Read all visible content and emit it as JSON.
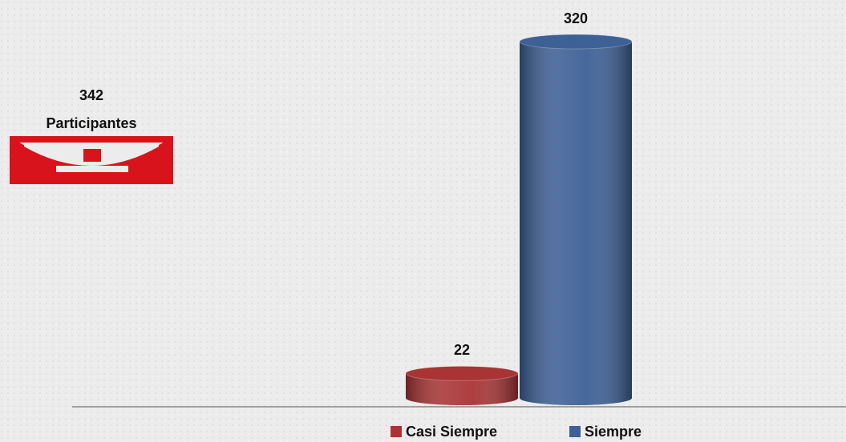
{
  "chart_data": {
    "type": "bar",
    "categories": [
      null
    ],
    "series": [
      {
        "name": "Casi Siempre",
        "color": "#a83434",
        "values": [
          22
        ]
      },
      {
        "name": "Siempre",
        "color": "#3d6096",
        "values": [
          320
        ]
      }
    ],
    "annotation": {
      "value": 342,
      "label": "Participantes"
    },
    "legend": "bottom"
  }
}
